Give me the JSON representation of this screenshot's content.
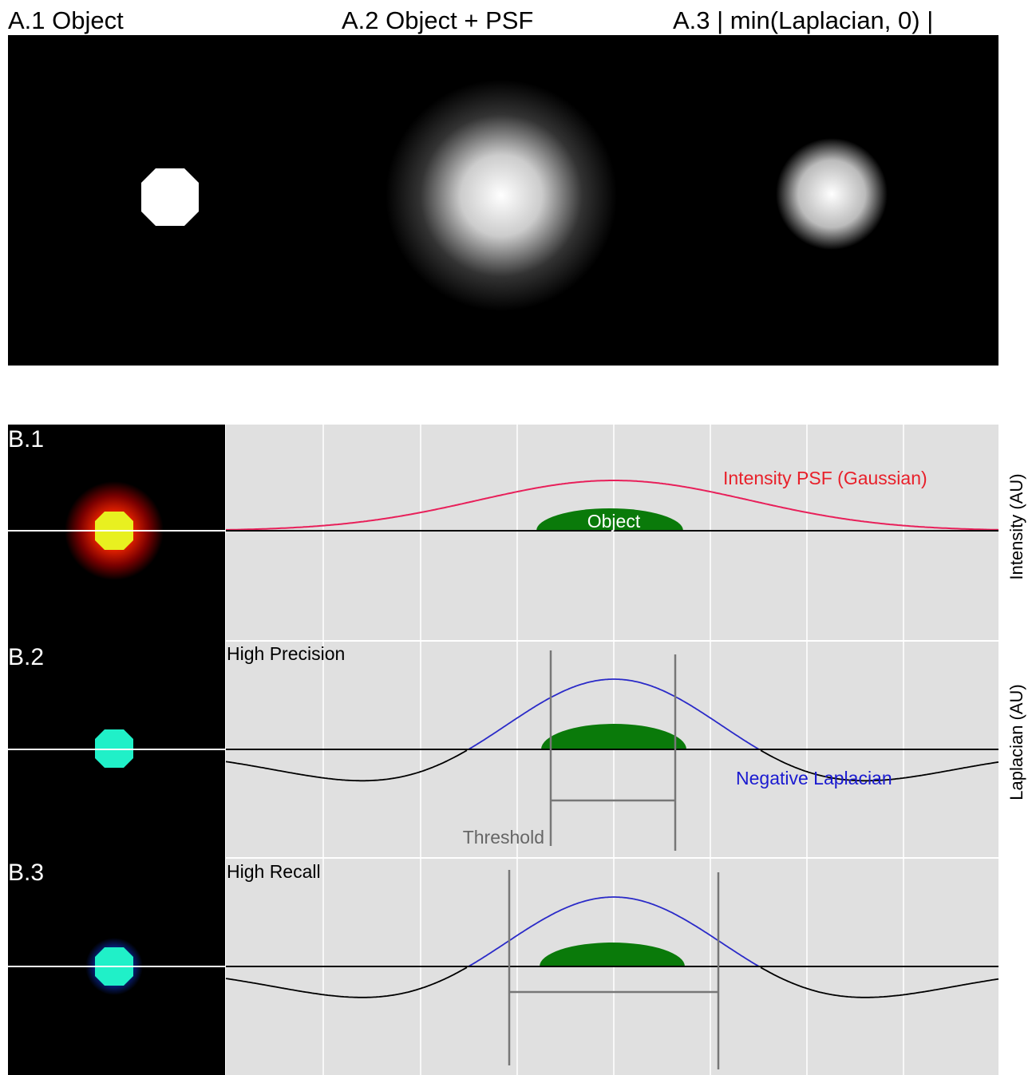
{
  "panel_a": {
    "labels": [
      "A.1 Object",
      "A.2 Object + PSF",
      "A.3 | min(Laplacian, 0) |"
    ]
  },
  "panel_b": {
    "row_labels": [
      "B.1",
      "B.2",
      "B.3"
    ],
    "psf_label": "Intensity PSF (Gaussian)",
    "object_label": "Object",
    "high_precision": "High Precision",
    "negative_laplacian": "Negative Laplacian",
    "threshold": "Threshold",
    "high_recall": "High Recall",
    "y_axis_intensity": "Intensity (AU)",
    "y_axis_laplacian": "Laplacian (AU)"
  }
}
